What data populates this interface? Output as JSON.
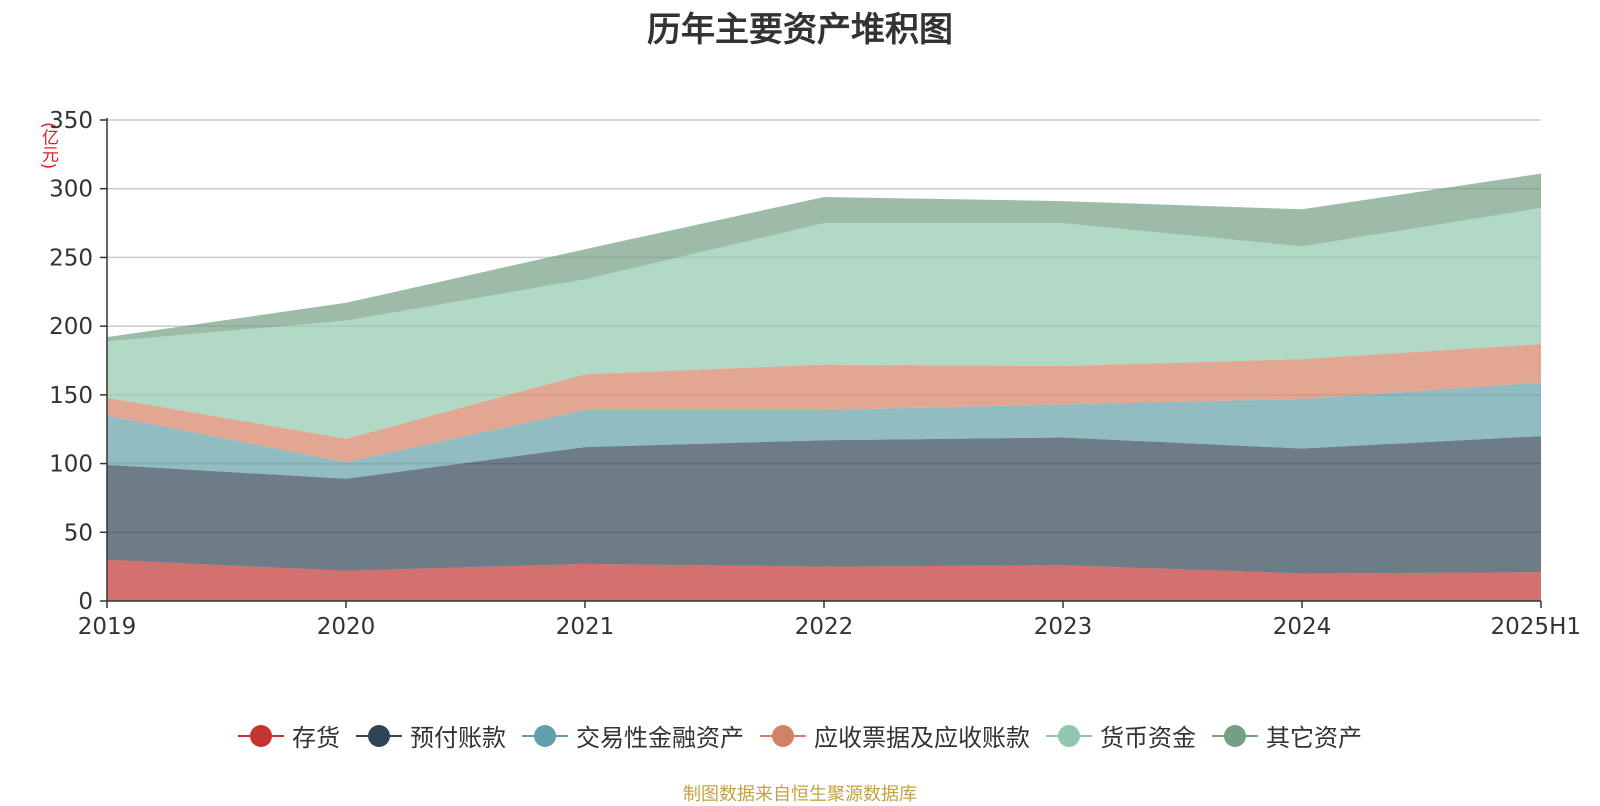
{
  "chart_data": {
    "type": "area",
    "stacked": true,
    "title": "历年主要资产堆积图",
    "unit_label": "(亿元)",
    "categories": [
      "2019",
      "2020",
      "2021",
      "2022",
      "2023",
      "2024",
      "2025H1"
    ],
    "ylim": [
      0,
      350
    ],
    "yticks": [
      0,
      50,
      100,
      150,
      200,
      250,
      300,
      350
    ],
    "grid": true,
    "legend_position": "bottom",
    "series": [
      {
        "name": "存货",
        "color": "#c23531",
        "values": [
          30,
          22,
          27,
          25,
          26,
          20,
          21
        ]
      },
      {
        "name": "预付账款",
        "color": "#2f4554",
        "values": [
          69,
          67,
          85,
          92,
          93,
          91,
          99
        ]
      },
      {
        "name": "交易性金融资产",
        "color": "#61a0a8",
        "values": [
          36,
          12,
          27,
          22,
          24,
          36,
          39
        ]
      },
      {
        "name": "应收票据及应收账款",
        "color": "#d48265",
        "values": [
          13,
          17,
          26,
          33,
          28,
          29,
          28
        ]
      },
      {
        "name": "货币资金",
        "color": "#91c7ae",
        "values": [
          41,
          86,
          69,
          103,
          104,
          82,
          99
        ]
      },
      {
        "name": "其它资产",
        "color": "#749f83",
        "values": [
          3,
          13,
          22,
          19,
          16,
          27,
          25
        ]
      }
    ],
    "source": "制图数据来自恒生聚源数据库"
  }
}
